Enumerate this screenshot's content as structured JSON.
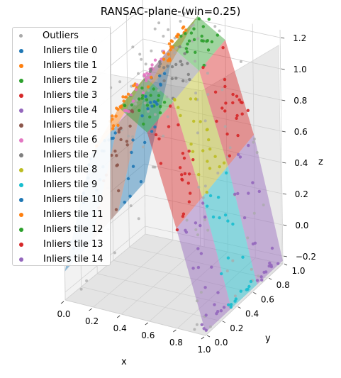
{
  "chart_data": {
    "type": "scatter",
    "projection": "3d",
    "title": "RANSAC-plane-(win=0.25)",
    "xlabel": "x",
    "ylabel": "y",
    "zlabel": "z",
    "x_ticks": [
      "0.0",
      "0.2",
      "0.4",
      "0.6",
      "0.8",
      "1.0"
    ],
    "y_ticks": [
      "0.0",
      "0.2",
      "0.4",
      "0.6",
      "0.8",
      "1.0"
    ],
    "z_ticks": [
      "−0.2",
      "0.0",
      "0.2",
      "0.4",
      "0.6",
      "0.8",
      "1.0",
      "1.2"
    ],
    "xlim": [
      0,
      1
    ],
    "ylim": [
      0,
      1
    ],
    "zlim": [
      -0.25,
      1.25
    ],
    "grid": true,
    "legend_position": "upper-left",
    "series": [
      {
        "name": "Outliers",
        "color": "#a9a9a9"
      },
      {
        "name": "Inliers tile 0",
        "color": "#1f77b4"
      },
      {
        "name": "Inliers tile 1",
        "color": "#ff7f0e"
      },
      {
        "name": "Inliers tile 2",
        "color": "#2ca02c"
      },
      {
        "name": "Inliers tile 3",
        "color": "#d62728"
      },
      {
        "name": "Inliers tile 4",
        "color": "#9467bd"
      },
      {
        "name": "Inliers tile 5",
        "color": "#8c564b"
      },
      {
        "name": "Inliers tile 6",
        "color": "#e377c2"
      },
      {
        "name": "Inliers tile 7",
        "color": "#7f7f7f"
      },
      {
        "name": "Inliers tile 8",
        "color": "#bcbd22"
      },
      {
        "name": "Inliers tile 9",
        "color": "#17becf"
      },
      {
        "name": "Inliers tile 10",
        "color": "#1f77b4"
      },
      {
        "name": "Inliers tile 11",
        "color": "#ff7f0e"
      },
      {
        "name": "Inliers tile 12",
        "color": "#2ca02c"
      },
      {
        "name": "Inliers tile 13",
        "color": "#d62728"
      },
      {
        "name": "Inliers tile 14",
        "color": "#9467bd"
      }
    ]
  }
}
